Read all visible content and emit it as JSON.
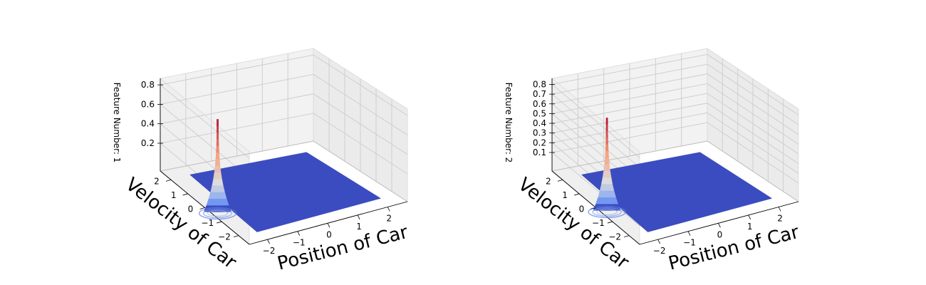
{
  "chart_data": [
    {
      "type": "surface",
      "zlabel": "Feature Number: 1",
      "xlabel": "Position of Car",
      "ylabel": "Velocity of Car",
      "x_ticks": [
        "−2",
        "−1",
        "0",
        "1",
        "2"
      ],
      "y_ticks": [
        "−2",
        "−1",
        "0",
        "1",
        "2"
      ],
      "z_ticks": [
        "0.2",
        "0.4",
        "0.6",
        "0.8"
      ],
      "xlim": [
        -2.6,
        2.6
      ],
      "ylim": [
        -2.6,
        2.6
      ],
      "zlim": [
        0,
        0.9
      ],
      "peak": {
        "x": -2.4,
        "y": -0.4,
        "z": 0.9
      },
      "colormap": "coolwarm",
      "base_color": "#3b4cc0",
      "peak_color": "#b40426"
    },
    {
      "type": "surface",
      "zlabel": "Feature Number: 2",
      "xlabel": "Position of Car",
      "ylabel": "Velocity of Car",
      "x_ticks": [
        "−2",
        "−1",
        "0",
        "1",
        "2"
      ],
      "y_ticks": [
        "−2",
        "−1",
        "0",
        "1",
        "2"
      ],
      "z_ticks": [
        "0.1",
        "0.2",
        "0.3",
        "0.4",
        "0.5",
        "0.6",
        "0.7",
        "0.8"
      ],
      "xlim": [
        -2.6,
        2.6
      ],
      "ylim": [
        -2.6,
        2.6
      ],
      "zlim": [
        0,
        0.85
      ],
      "peak": {
        "x": -2.4,
        "y": -0.3,
        "z": 0.85
      },
      "colormap": "coolwarm",
      "base_color": "#3b4cc0",
      "peak_color": "#b40426"
    }
  ]
}
